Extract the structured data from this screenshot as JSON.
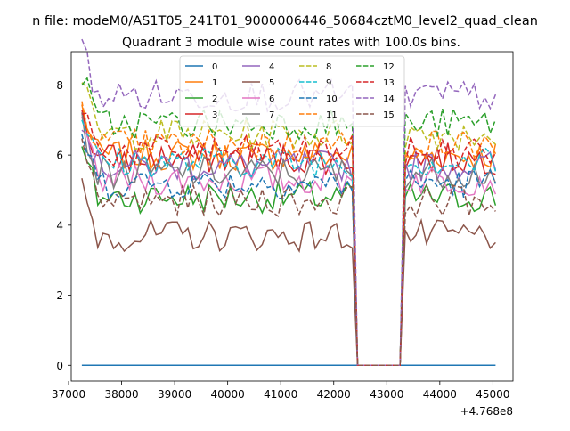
{
  "suptitle": "n file: modeM0/AS1T05_241T01_9000006446_50684cztM0_level2_quad_clean",
  "chart_data": {
    "type": "line",
    "title": "Quadrant 3 module wise count rates with 100.0s bins.",
    "xlabel": "",
    "ylabel": "",
    "x_offset_label": "+4.768e8",
    "xlim": [
      37050,
      45380
    ],
    "ylim": [
      -0.45,
      8.95
    ],
    "xticks": [
      37000,
      38000,
      39000,
      40000,
      41000,
      42000,
      43000,
      44000,
      45000
    ],
    "yticks": [
      0,
      2,
      4,
      6,
      8
    ],
    "xtick_labels": [
      "37000",
      "38000",
      "39000",
      "40000",
      "41000",
      "42000",
      "43000",
      "44000",
      "45000"
    ],
    "ytick_labels": [
      "0",
      "2",
      "4",
      "6",
      "8"
    ],
    "x_start": 37250,
    "x_step": 100,
    "n_points": 79,
    "gap_start": 42450,
    "gap_end": 43250,
    "legend_position": "upper center",
    "series": [
      {
        "name": "0",
        "color": "#1f77b4",
        "dash": "solid",
        "level": 0.0
      },
      {
        "name": "1",
        "color": "#ff7f0e",
        "dash": "solid",
        "level": 6.0
      },
      {
        "name": "2",
        "color": "#2ca02c",
        "dash": "solid",
        "level": 4.8
      },
      {
        "name": "3",
        "color": "#d62728",
        "dash": "solid",
        "level": 5.9
      },
      {
        "name": "4",
        "color": "#9467bd",
        "dash": "solid",
        "level": 5.7
      },
      {
        "name": "5",
        "color": "#8c564b",
        "dash": "solid",
        "level": 3.7
      },
      {
        "name": "6",
        "color": "#e377c2",
        "dash": "solid",
        "level": 5.3
      },
      {
        "name": "7",
        "color": "#7f7f7f",
        "dash": "solid",
        "level": 5.5
      },
      {
        "name": "8",
        "color": "#bcbd22",
        "dash": "dashed",
        "level": 6.6
      },
      {
        "name": "9",
        "color": "#17becf",
        "dash": "dashed",
        "level": 5.8
      },
      {
        "name": "10",
        "color": "#1f77b4",
        "dash": "dashed",
        "level": 5.2
      },
      {
        "name": "11",
        "color": "#ff7f0e",
        "dash": "dashed",
        "level": 6.3
      },
      {
        "name": "12",
        "color": "#2ca02c",
        "dash": "dashed",
        "level": 6.9
      },
      {
        "name": "13",
        "color": "#d62728",
        "dash": "dashed",
        "level": 6.1
      },
      {
        "name": "14",
        "color": "#9467bd",
        "dash": "dashed",
        "level": 7.7
      },
      {
        "name": "15",
        "color": "#8c564b",
        "dash": "dashed",
        "level": 4.7
      }
    ]
  }
}
